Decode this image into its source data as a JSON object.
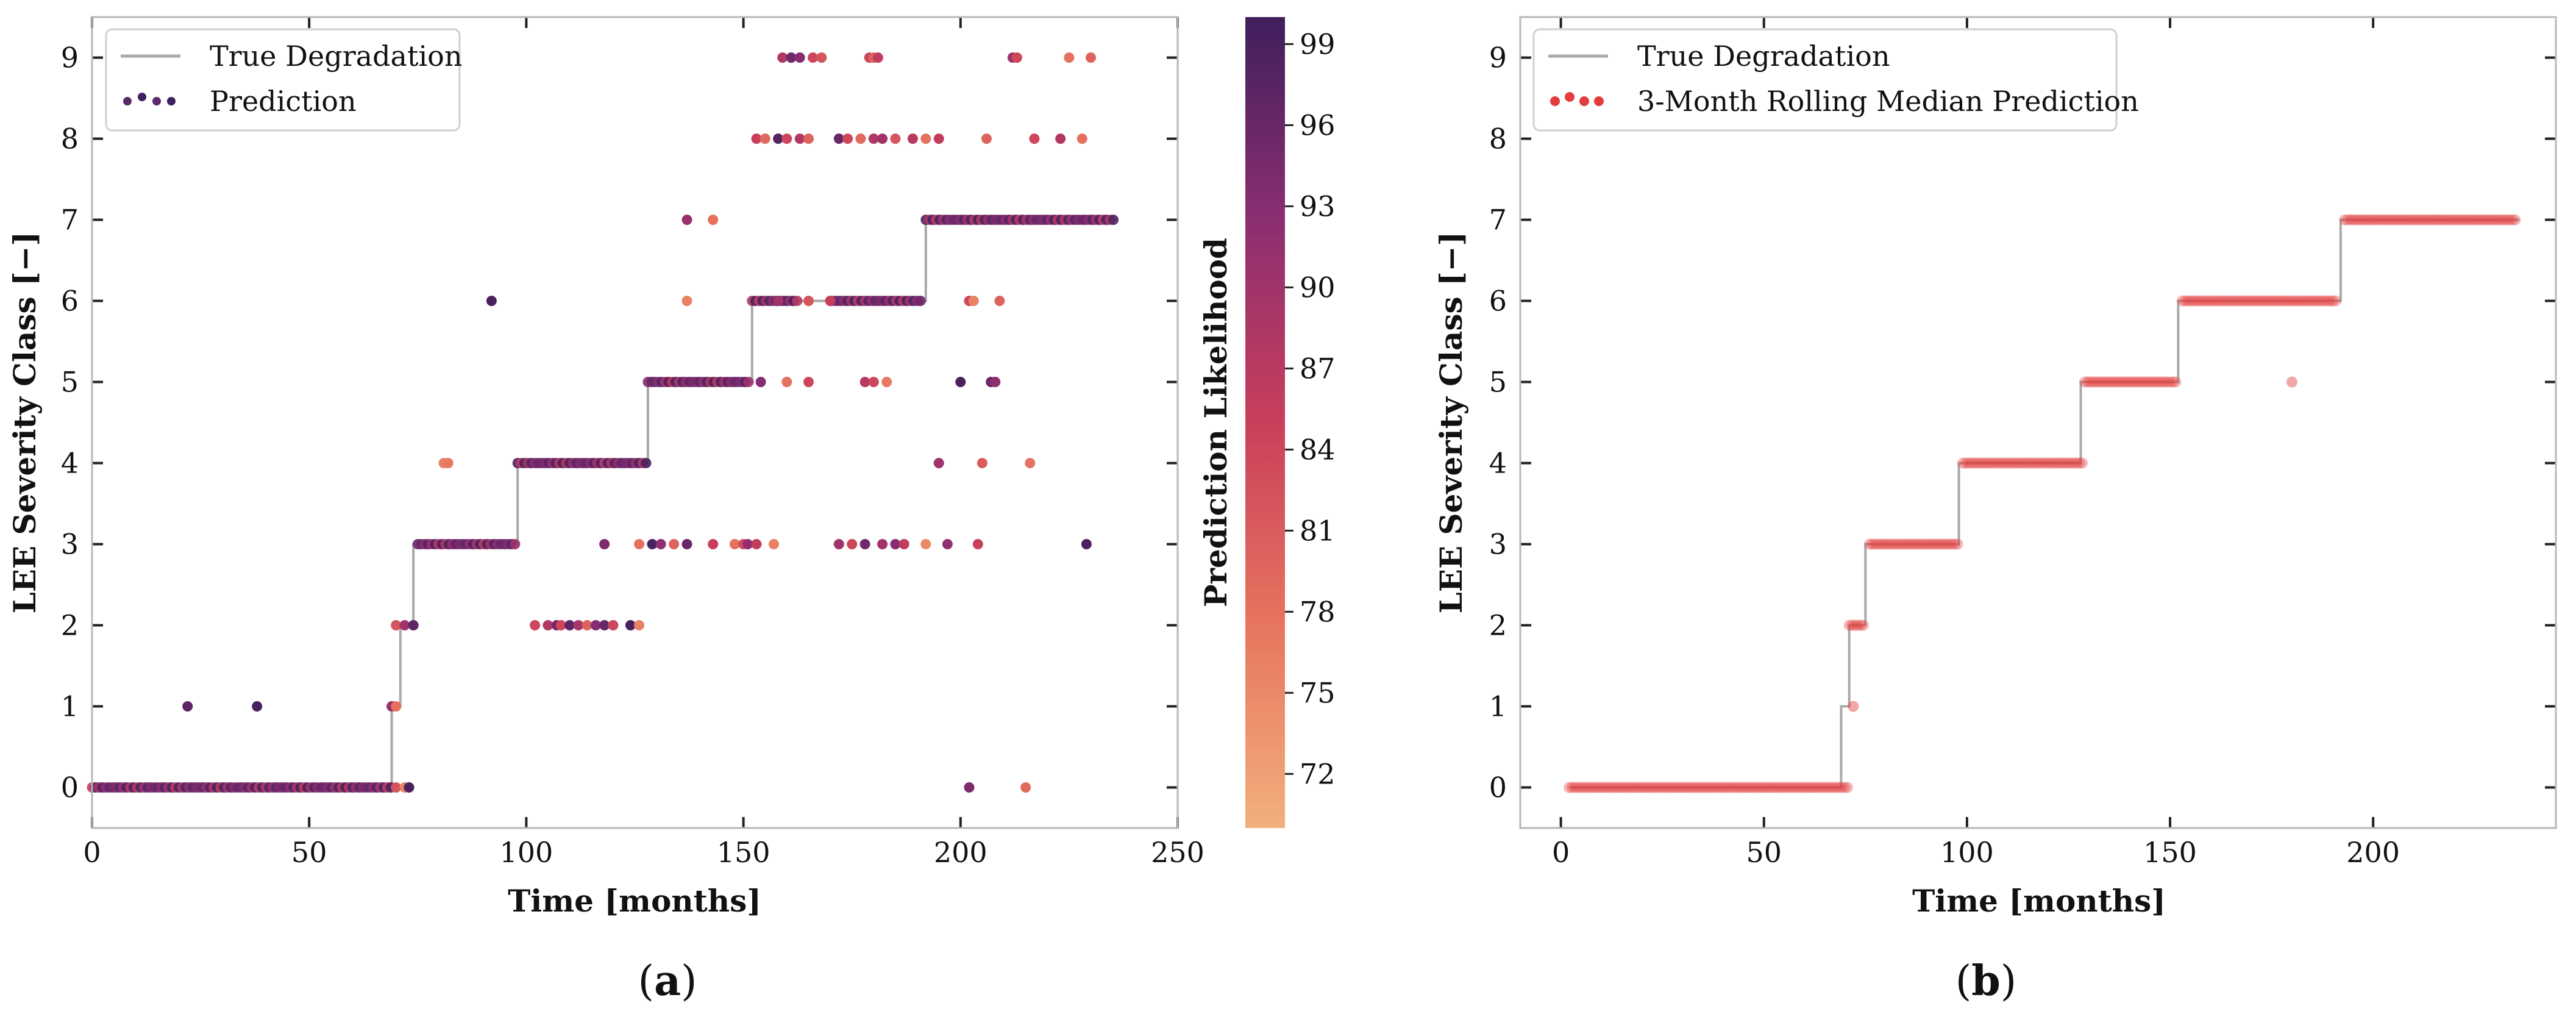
{
  "figure": {
    "subfigure_a_label": "a",
    "subfigure_b_label": "b"
  },
  "chart_data": [
    {
      "type": "scatter",
      "panel": "a",
      "xlabel": "Time [months]",
      "ylabel": "LEE Severity Class [−]",
      "xlim": [
        0,
        250
      ],
      "ylim": [
        -0.5,
        9.5
      ],
      "xticks": [
        0,
        50,
        100,
        150,
        200,
        250
      ],
      "yticks": [
        0,
        1,
        2,
        3,
        4,
        5,
        6,
        7,
        8,
        9
      ],
      "legend": {
        "position": "top-left",
        "entries": [
          "True Degradation",
          "Prediction"
        ]
      },
      "colorbar": {
        "label": "Prediction Likelihood",
        "range": [
          70,
          100
        ],
        "ticks": [
          72,
          75,
          78,
          81,
          84,
          87,
          90,
          93,
          96,
          99
        ]
      },
      "true_degradation": [
        [
          0,
          0
        ],
        [
          69,
          0
        ],
        [
          69,
          1
        ],
        [
          71,
          1
        ],
        [
          71,
          2
        ],
        [
          74,
          2
        ],
        [
          74,
          3
        ],
        [
          98,
          3
        ],
        [
          98,
          4
        ],
        [
          128,
          4
        ],
        [
          128,
          5
        ],
        [
          152,
          5
        ],
        [
          152,
          6
        ],
        [
          192,
          6
        ],
        [
          192,
          7
        ],
        [
          236,
          7
        ]
      ],
      "prediction_runs": [
        {
          "y": 0,
          "x_start": 0,
          "x_end": 69
        },
        {
          "y": 3,
          "x_start": 75,
          "x_end": 98
        },
        {
          "y": 4,
          "x_start": 98,
          "x_end": 128
        },
        {
          "y": 5,
          "x_start": 128,
          "x_end": 152
        },
        {
          "y": 6,
          "x_start": 152,
          "x_end": 163
        },
        {
          "y": 6,
          "x_start": 170,
          "x_end": 191
        },
        {
          "y": 7,
          "x_start": 192,
          "x_end": 236
        }
      ],
      "prediction_points": [
        [
          22,
          1,
          97
        ],
        [
          38,
          1,
          99
        ],
        [
          69,
          1,
          91
        ],
        [
          70,
          1,
          78
        ],
        [
          70,
          2,
          82
        ],
        [
          72,
          2,
          90
        ],
        [
          74,
          2,
          97
        ],
        [
          70,
          0,
          82
        ],
        [
          72,
          0,
          76
        ],
        [
          73,
          0,
          99
        ],
        [
          81,
          4,
          76
        ],
        [
          82,
          4,
          77
        ],
        [
          92,
          6,
          99
        ],
        [
          102,
          2,
          84
        ],
        [
          105,
          2,
          88
        ],
        [
          107,
          2,
          95
        ],
        [
          108,
          2,
          84
        ],
        [
          110,
          2,
          97
        ],
        [
          112,
          2,
          89
        ],
        [
          114,
          2,
          80
        ],
        [
          116,
          2,
          93
        ],
        [
          118,
          2,
          96
        ],
        [
          120,
          2,
          84
        ],
        [
          124,
          2,
          99
        ],
        [
          126,
          2,
          76
        ],
        [
          118,
          3,
          94
        ],
        [
          126,
          3,
          78
        ],
        [
          129,
          3,
          99
        ],
        [
          131,
          3,
          92
        ],
        [
          134,
          3,
          80
        ],
        [
          137,
          3,
          96
        ],
        [
          143,
          3,
          85
        ],
        [
          148,
          3,
          78
        ],
        [
          150,
          3,
          83
        ],
        [
          151,
          3,
          92
        ],
        [
          153,
          3,
          86
        ],
        [
          157,
          3,
          76
        ],
        [
          172,
          3,
          90
        ],
        [
          175,
          3,
          84
        ],
        [
          178,
          3,
          95
        ],
        [
          182,
          3,
          90
        ],
        [
          185,
          3,
          93
        ],
        [
          187,
          3,
          86
        ],
        [
          192,
          3,
          75
        ],
        [
          197,
          3,
          92
        ],
        [
          204,
          3,
          85
        ],
        [
          229,
          3,
          99
        ],
        [
          137,
          7,
          91
        ],
        [
          143,
          7,
          78
        ],
        [
          137,
          6,
          76
        ],
        [
          195,
          4,
          90
        ],
        [
          205,
          4,
          81
        ],
        [
          216,
          4,
          78
        ],
        [
          154,
          5,
          93
        ],
        [
          160,
          5,
          78
        ],
        [
          165,
          5,
          84
        ],
        [
          178,
          5,
          87
        ],
        [
          180,
          5,
          84
        ],
        [
          183,
          5,
          77
        ],
        [
          200,
          5,
          99
        ],
        [
          207,
          5,
          96
        ],
        [
          208,
          5,
          92
        ],
        [
          158,
          6,
          90
        ],
        [
          165,
          6,
          82
        ],
        [
          170,
          6,
          85
        ],
        [
          202,
          6,
          84
        ],
        [
          203,
          6,
          76
        ],
        [
          209,
          6,
          80
        ],
        [
          153,
          8,
          85
        ],
        [
          155,
          8,
          79
        ],
        [
          158,
          8,
          98
        ],
        [
          160,
          8,
          84
        ],
        [
          163,
          8,
          88
        ],
        [
          165,
          8,
          80
        ],
        [
          172,
          8,
          96
        ],
        [
          174,
          8,
          84
        ],
        [
          177,
          8,
          79
        ],
        [
          180,
          8,
          88
        ],
        [
          182,
          8,
          90
        ],
        [
          185,
          8,
          82
        ],
        [
          189,
          8,
          87
        ],
        [
          192,
          8,
          78
        ],
        [
          195,
          8,
          86
        ],
        [
          206,
          8,
          80
        ],
        [
          217,
          8,
          84
        ],
        [
          223,
          8,
          88
        ],
        [
          228,
          8,
          78
        ],
        [
          159,
          9,
          88
        ],
        [
          161,
          9,
          95
        ],
        [
          163,
          9,
          93
        ],
        [
          166,
          9,
          84
        ],
        [
          168,
          9,
          82
        ],
        [
          179,
          9,
          84
        ],
        [
          180,
          9,
          80
        ],
        [
          181,
          9,
          86
        ],
        [
          212,
          9,
          90
        ],
        [
          213,
          9,
          84
        ],
        [
          225,
          9,
          78
        ],
        [
          230,
          9,
          80
        ],
        [
          202,
          0,
          94
        ],
        [
          215,
          0,
          79
        ]
      ]
    },
    {
      "type": "scatter",
      "panel": "b",
      "xlabel": "Time [months]",
      "ylabel": "LEE Severity Class [−]",
      "xlim": [
        -10,
        245
      ],
      "ylim": [
        -0.5,
        9.5
      ],
      "xticks": [
        0,
        50,
        100,
        150,
        200
      ],
      "yticks": [
        0,
        1,
        2,
        3,
        4,
        5,
        6,
        7,
        8,
        9
      ],
      "legend": {
        "position": "top-left",
        "entries": [
          "True Degradation",
          "3-Month Rolling Median Prediction"
        ]
      },
      "true_degradation": [
        [
          2,
          0
        ],
        [
          69,
          0
        ],
        [
          69,
          1
        ],
        [
          71,
          1
        ],
        [
          71,
          2
        ],
        [
          75,
          2
        ],
        [
          75,
          3
        ],
        [
          98,
          3
        ],
        [
          98,
          4
        ],
        [
          128,
          4
        ],
        [
          128,
          5
        ],
        [
          152,
          5
        ],
        [
          152,
          6
        ],
        [
          192,
          6
        ],
        [
          192,
          7
        ],
        [
          236,
          7
        ]
      ],
      "median_runs": [
        {
          "y": 0,
          "x_start": 2,
          "x_end": 71
        },
        {
          "y": 2,
          "x_start": 71,
          "x_end": 75
        },
        {
          "y": 3,
          "x_start": 76,
          "x_end": 98
        },
        {
          "y": 4,
          "x_start": 99,
          "x_end": 129
        },
        {
          "y": 5,
          "x_start": 129,
          "x_end": 152
        },
        {
          "y": 6,
          "x_start": 153,
          "x_end": 191
        },
        {
          "y": 7,
          "x_start": 193,
          "x_end": 235
        }
      ],
      "median_points": [
        [
          72,
          1
        ],
        [
          180,
          5
        ]
      ]
    }
  ]
}
